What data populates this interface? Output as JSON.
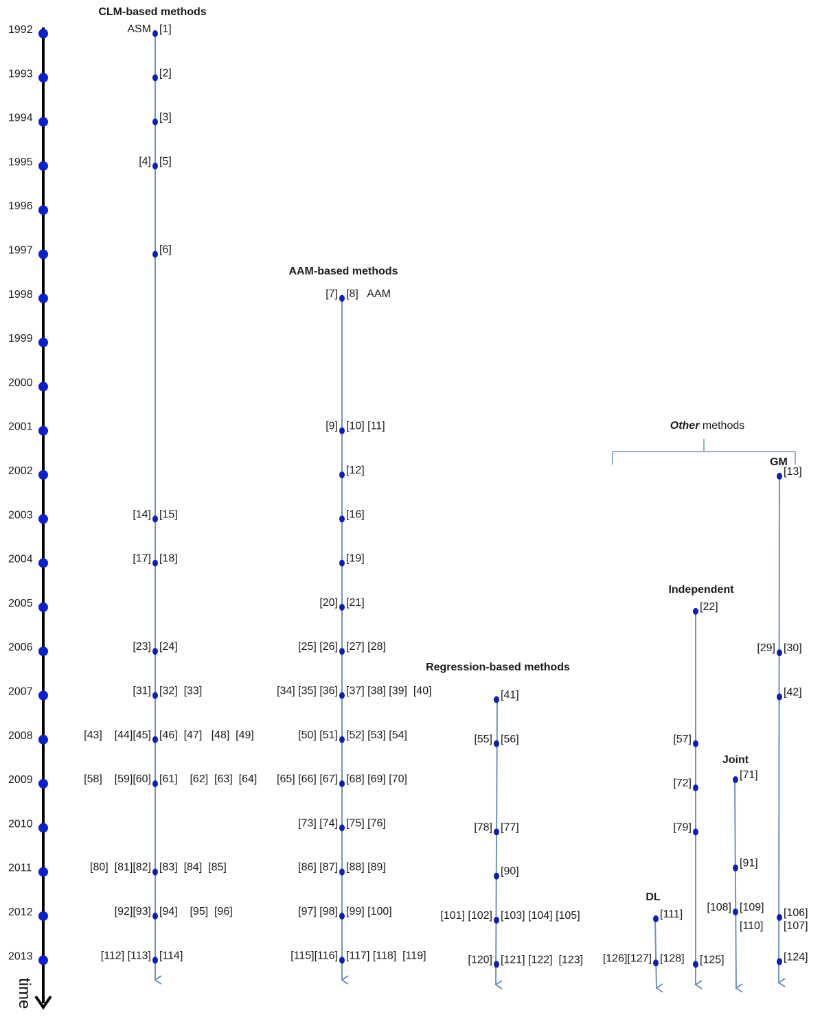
{
  "axis": {
    "time_label": "time"
  },
  "years": [
    "1992",
    "1993",
    "1994",
    "1995",
    "1996",
    "1997",
    "1998",
    "1999",
    "2000",
    "2001",
    "2002",
    "2003",
    "2004",
    "2005",
    "2006",
    "2007",
    "2008",
    "2009",
    "2010",
    "2011",
    "2012",
    "2013"
  ],
  "headers": {
    "clm": "CLM-based methods",
    "aam": "AAM-based methods",
    "regression": "Regression-based methods",
    "other_italic": "Other",
    "other_rest": " methods",
    "gm": "GM",
    "independent": "Independent",
    "joint": "Joint",
    "dl": "DL"
  },
  "labels": {
    "clm": [
      {
        "year": "1992",
        "left": "ASM",
        "right": "[1]"
      },
      {
        "year": "1993",
        "left": "",
        "right": "[2]"
      },
      {
        "year": "1994",
        "left": "",
        "right": "[3]"
      },
      {
        "year": "1995",
        "left": "[4]",
        "right": "[5]"
      },
      {
        "year": "1997",
        "left": "",
        "right": "[6]"
      },
      {
        "year": "2003",
        "left": "[14]",
        "right": "[15]"
      },
      {
        "year": "2004",
        "left": "[17]",
        "right": "[18]"
      },
      {
        "year": "2006",
        "left": "[23]",
        "right": "[24]"
      },
      {
        "year": "2007",
        "left": "[31]",
        "right": "[32]  [33]"
      },
      {
        "year": "2008",
        "left": "[43]    [44][45]",
        "right": "[46]  [47]   [48]  [49]"
      },
      {
        "year": "2009",
        "left": "[58]    [59][60]",
        "right": "[61]    [62]  [63]  [64]"
      },
      {
        "year": "2011",
        "left": "[80]  [81][82]",
        "right": "[83]  [84]  [85]"
      },
      {
        "year": "2012",
        "left": "[92][93]",
        "right": "[94]    [95]  [96]"
      },
      {
        "year": "2013",
        "left": "[112] [113]",
        "right": "[114]"
      }
    ],
    "aam": [
      {
        "year": "1998",
        "left": "[7]",
        "right": "[8]   AAM"
      },
      {
        "year": "2001",
        "left": "[9]",
        "right": "[10] [11]"
      },
      {
        "year": "2002",
        "left": "",
        "right": "[12]"
      },
      {
        "year": "2003",
        "left": "",
        "right": "[16]"
      },
      {
        "year": "2004",
        "left": "",
        "right": "[19]"
      },
      {
        "year": "2005",
        "left": "[20]",
        "right": "[21]"
      },
      {
        "year": "2006",
        "left": "[25] [26]",
        "right": "[27] [28]"
      },
      {
        "year": "2007",
        "left": "[34] [35] [36]",
        "right": "[37] [38] [39]  [40]"
      },
      {
        "year": "2008",
        "left": "[50] [51]",
        "right": "[52] [53] [54]"
      },
      {
        "year": "2009",
        "left": "[65] [66] [67]",
        "right": "[68] [69] [70]"
      },
      {
        "year": "2010",
        "left": "[73] [74]",
        "right": "[75] [76]"
      },
      {
        "year": "2011",
        "left": "[86] [87]",
        "right": "[88] [89]"
      },
      {
        "year": "2012",
        "left": "[97] [98]",
        "right": "[99] [100]"
      },
      {
        "year": "2013",
        "left": "[115][116]",
        "right": "[117] [118]  [119]"
      }
    ],
    "regression": [
      {
        "year": "2007",
        "left": "",
        "right": "[41]"
      },
      {
        "year": "2008",
        "left": "[55]",
        "right": "[56]"
      },
      {
        "year": "2010",
        "left": "[78]",
        "right": "[77]"
      },
      {
        "year": "2011",
        "left": "",
        "right": "[90]"
      },
      {
        "year": "2012",
        "left": "[101] [102]",
        "right": "[103] [104] [105]"
      },
      {
        "year": "2013",
        "left": "[120]",
        "right": "[121] [122]  [123]"
      }
    ],
    "dl": [
      {
        "year": "2012",
        "left": "",
        "right": "[111]"
      },
      {
        "year": "2013",
        "left": "[126][127]",
        "right": "[128]"
      }
    ],
    "independent": [
      {
        "year": "2005",
        "left": "",
        "right": "[22]"
      },
      {
        "year": "2008",
        "left": "[57]",
        "right": ""
      },
      {
        "year": "2009",
        "left": "[72]",
        "right": ""
      },
      {
        "year": "2010",
        "left": "[79]",
        "right": ""
      },
      {
        "year": "2013",
        "left": "",
        "right": "[125]"
      }
    ],
    "joint": [
      {
        "year": "2009",
        "left": "",
        "right": "[71]"
      },
      {
        "year": "2011",
        "left": "",
        "right": "[91]"
      },
      {
        "year": "2012",
        "left": "[108]",
        "right": "[109]"
      },
      {
        "year": "2012b",
        "left": "",
        "right": "[110]"
      }
    ],
    "gm": [
      {
        "year": "2002",
        "left": "",
        "right": "[13]"
      },
      {
        "year": "2006",
        "left": "[29]",
        "right": "[30]"
      },
      {
        "year": "2007",
        "left": "",
        "right": "[42]"
      },
      {
        "year": "2012",
        "left": "",
        "right": "[106]"
      },
      {
        "year": "2012b",
        "left": "",
        "right": "[107]"
      },
      {
        "year": "2013",
        "left": "",
        "right": "[124]"
      }
    ]
  },
  "colors": {
    "axis": "#000000",
    "year_dot": "#0a1fd0",
    "branch_line": "#6e93c4",
    "node_dot": "#0d1fb5",
    "text": "#1a1a1a"
  }
}
